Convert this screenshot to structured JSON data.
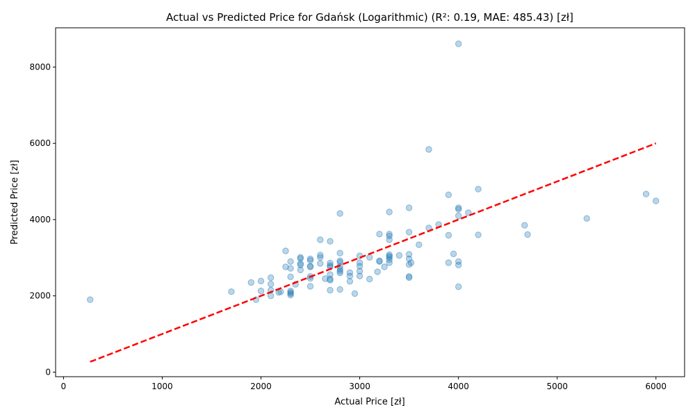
{
  "chart_data": {
    "type": "scatter",
    "title": "Actual vs Predicted Price for Gdańsk (Logarithmic) (R²: 0.19, MAE: 485.43) [zł]",
    "xlabel": "Actual Price [zł]",
    "ylabel": "Predicted Price [zł]",
    "xlim": [
      -80,
      6290
    ],
    "ylim": [
      -120,
      9030
    ],
    "xticks": [
      0,
      1000,
      2000,
      3000,
      4000,
      5000,
      6000
    ],
    "yticks": [
      0,
      2000,
      4000,
      6000,
      8000
    ],
    "grid": false,
    "point_color": "#1f77b4",
    "line_color": "#ff0000",
    "reference_line": {
      "style": "dashed",
      "x": [
        270,
        6000
      ],
      "y": [
        270,
        6000
      ]
    },
    "points": [
      [
        270,
        1900
      ],
      [
        1700,
        2110
      ],
      [
        1900,
        2350
      ],
      [
        1950,
        1900
      ],
      [
        2000,
        2130
      ],
      [
        2000,
        2390
      ],
      [
        2100,
        2480
      ],
      [
        2100,
        2310
      ],
      [
        2100,
        2150
      ],
      [
        2100,
        2000
      ],
      [
        2180,
        2090
      ],
      [
        2200,
        2110
      ],
      [
        2250,
        3180
      ],
      [
        2250,
        2760
      ],
      [
        2300,
        2900
      ],
      [
        2300,
        2720
      ],
      [
        2300,
        2500
      ],
      [
        2300,
        2130
      ],
      [
        2300,
        2090
      ],
      [
        2300,
        2060
      ],
      [
        2300,
        2020
      ],
      [
        2350,
        2300
      ],
      [
        2400,
        3010
      ],
      [
        2400,
        2980
      ],
      [
        2400,
        2850
      ],
      [
        2400,
        2810
      ],
      [
        2400,
        2680
      ],
      [
        2500,
        2970
      ],
      [
        2500,
        2930
      ],
      [
        2500,
        2780
      ],
      [
        2500,
        2760
      ],
      [
        2500,
        2510
      ],
      [
        2500,
        2460
      ],
      [
        2500,
        2250
      ],
      [
        2600,
        3470
      ],
      [
        2600,
        3070
      ],
      [
        2600,
        3010
      ],
      [
        2600,
        2850
      ],
      [
        2650,
        2450
      ],
      [
        2700,
        3430
      ],
      [
        2700,
        2860
      ],
      [
        2700,
        2800
      ],
      [
        2700,
        2760
      ],
      [
        2700,
        2560
      ],
      [
        2700,
        2440
      ],
      [
        2700,
        2410
      ],
      [
        2700,
        2150
      ],
      [
        2800,
        4160
      ],
      [
        2800,
        3120
      ],
      [
        2800,
        2920
      ],
      [
        2800,
        2880
      ],
      [
        2800,
        2770
      ],
      [
        2800,
        2700
      ],
      [
        2800,
        2650
      ],
      [
        2800,
        2600
      ],
      [
        2800,
        2170
      ],
      [
        2900,
        2610
      ],
      [
        2900,
        2520
      ],
      [
        2900,
        2380
      ],
      [
        2950,
        2060
      ],
      [
        3000,
        3050
      ],
      [
        3000,
        2870
      ],
      [
        3000,
        2780
      ],
      [
        3000,
        2650
      ],
      [
        3000,
        2520
      ],
      [
        3100,
        3010
      ],
      [
        3100,
        2440
      ],
      [
        3180,
        2630
      ],
      [
        3200,
        3620
      ],
      [
        3200,
        2920
      ],
      [
        3200,
        2900
      ],
      [
        3250,
        2760
      ],
      [
        3300,
        4200
      ],
      [
        3300,
        3620
      ],
      [
        3300,
        3570
      ],
      [
        3300,
        3470
      ],
      [
        3300,
        3080
      ],
      [
        3300,
        3040
      ],
      [
        3300,
        3010
      ],
      [
        3300,
        2950
      ],
      [
        3300,
        2870
      ],
      [
        3400,
        3060
      ],
      [
        3500,
        4310
      ],
      [
        3500,
        3670
      ],
      [
        3500,
        3090
      ],
      [
        3500,
        2970
      ],
      [
        3500,
        2820
      ],
      [
        3500,
        2510
      ],
      [
        3500,
        2480
      ],
      [
        3520,
        2870
      ],
      [
        3600,
        3340
      ],
      [
        3700,
        5840
      ],
      [
        3700,
        3780
      ],
      [
        3800,
        3870
      ],
      [
        3900,
        4650
      ],
      [
        3900,
        3590
      ],
      [
        3900,
        2870
      ],
      [
        3950,
        3100
      ],
      [
        4000,
        8610
      ],
      [
        4000,
        4310
      ],
      [
        4000,
        4270
      ],
      [
        4000,
        4100
      ],
      [
        4000,
        2900
      ],
      [
        4000,
        2810
      ],
      [
        4000,
        2240
      ],
      [
        4100,
        4180
      ],
      [
        4200,
        4800
      ],
      [
        4200,
        3600
      ],
      [
        4670,
        3850
      ],
      [
        4700,
        3610
      ],
      [
        5300,
        4030
      ],
      [
        5900,
        4670
      ],
      [
        6000,
        4490
      ]
    ]
  }
}
